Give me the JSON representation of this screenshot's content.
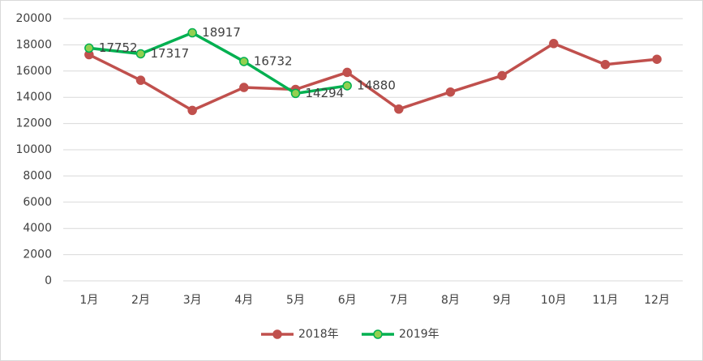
{
  "chart_data": {
    "type": "line",
    "categories": [
      "1月",
      "2月",
      "3月",
      "4月",
      "5月",
      "6月",
      "7月",
      "8月",
      "9月",
      "10月",
      "11月",
      "12月"
    ],
    "series": [
      {
        "name": "2018年",
        "color": "#c0504d",
        "values": [
          17250,
          15300,
          13000,
          14750,
          14600,
          15900,
          13100,
          14400,
          15650,
          18100,
          16500,
          16900
        ]
      },
      {
        "name": "2019年",
        "color": "#00b050",
        "marker_fill": "#92d050",
        "values": [
          17752,
          17317,
          18917,
          16732,
          14294,
          14880,
          null,
          null,
          null,
          null,
          null,
          null
        ],
        "data_labels": true
      }
    ],
    "ylim": [
      0,
      20000
    ],
    "yticks": [
      0,
      2000,
      4000,
      6000,
      8000,
      10000,
      12000,
      14000,
      16000,
      18000,
      20000
    ],
    "grid": true,
    "legend": "bottom"
  }
}
